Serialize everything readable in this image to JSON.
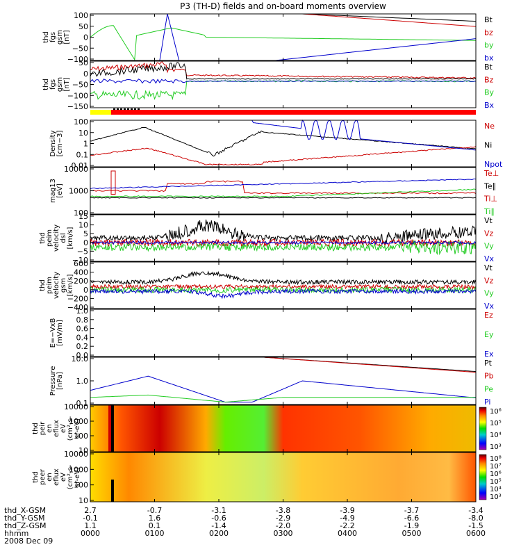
{
  "chart_data": {
    "title": "P3 (TH-D) fields and on-board moments overview",
    "type": "line",
    "x_range_hhmm": [
      "0000",
      "0600"
    ],
    "x_tick_hhmm": [
      "0000",
      "0100",
      "0200",
      "0300",
      "0400",
      "0500",
      "0600"
    ],
    "date_label": "2008 Dec 09",
    "ephemeris_rows": [
      {
        "label": "thd_X-GSM",
        "values": [
          "2.7",
          "-0.7",
          "-3.1",
          "-3.8",
          "-3.9",
          "-3.7",
          "-3.4"
        ]
      },
      {
        "label": "thd_Y-GSM",
        "values": [
          "-0.1",
          "1.6",
          "-0.6",
          "-2.9",
          "-4.9",
          "-6.6",
          "-8.0"
        ]
      },
      {
        "label": "thd_Z-GSM",
        "values": [
          "1.1",
          "0.1",
          "-1.4",
          "-2.0",
          "-2.2",
          "-1.9",
          "-1.5"
        ]
      },
      {
        "label": "hhmm",
        "values": [
          "0000",
          "0100",
          "0200",
          "0300",
          "0400",
          "0500",
          "0600"
        ]
      }
    ],
    "panels": [
      {
        "id": "fgs",
        "ylabel": [
          "thd",
          "fgs",
          "gsm",
          "[nT]"
        ],
        "type": "line",
        "yticks": [
          "100",
          "50",
          "0",
          "−50",
          "−100"
        ],
        "legend": [
          {
            "name": "Bt",
            "color": "#000000"
          },
          {
            "name": "bz",
            "color": "#cc0000"
          },
          {
            "name": "by",
            "color": "#22cc22"
          },
          {
            "name": "bx",
            "color": "#0000cc"
          }
        ]
      },
      {
        "id": "fgl",
        "ylabel": [
          "thd",
          "fgs",
          "gsm",
          "[nT]"
        ],
        "type": "line",
        "yticks": [
          "50",
          "0",
          "−50",
          "−100",
          "−150"
        ],
        "legend": [
          {
            "name": "Bt",
            "color": "#000000"
          },
          {
            "name": "Bz",
            "color": "#cc0000"
          },
          {
            "name": "By",
            "color": "#22cc22"
          },
          {
            "name": "Bx",
            "color": "#0000cc"
          }
        ]
      },
      {
        "id": "density",
        "ylabel": [
          "Density",
          "[cm−3]"
        ],
        "type": "line",
        "log": true,
        "yticks": [
          "100",
          "10",
          "1",
          "0.1",
          "0.01"
        ],
        "legend": [
          {
            "name": "Ne",
            "color": "#cc0000"
          },
          {
            "name": "Ni",
            "color": "#000000"
          },
          {
            "name": "Npot",
            "color": "#0000cc"
          }
        ]
      },
      {
        "id": "temp",
        "ylabel": [
          "mag13",
          "[eV]"
        ],
        "type": "line",
        "log": true,
        "yticks": [
          "10000",
          "1000",
          "100"
        ],
        "legend": [
          {
            "name": "Te⊥",
            "color": "#cc0000"
          },
          {
            "name": "Te∥",
            "color": "#000000"
          },
          {
            "name": "Ti⊥",
            "color": "#cc0000"
          },
          {
            "name": "Ti∥",
            "color": "#22cc22"
          }
        ]
      },
      {
        "id": "velocity1",
        "ylabel": [
          "thd",
          "peim",
          "velocity",
          "dsl",
          "[km/s]"
        ],
        "type": "line",
        "yticks": [
          "15",
          "10",
          "5",
          "0",
          "−5",
          "−10"
        ],
        "legend": [
          {
            "name": "Vt",
            "color": "#000000"
          },
          {
            "name": "Vz",
            "color": "#cc0000"
          },
          {
            "name": "Vy",
            "color": "#22cc22"
          },
          {
            "name": "Vx",
            "color": "#0000cc"
          }
        ]
      },
      {
        "id": "velocity2",
        "ylabel": [
          "thd",
          "peim",
          "velocity",
          "gsm",
          "[km/s]"
        ],
        "type": "line",
        "yticks": [
          "600",
          "400",
          "200",
          "0",
          "−200",
          "−400"
        ],
        "legend": [
          {
            "name": "Vt",
            "color": "#000000"
          },
          {
            "name": "Vz",
            "color": "#cc0000"
          },
          {
            "name": "Vy",
            "color": "#22cc22"
          },
          {
            "name": "Vx",
            "color": "#0000cc"
          }
        ]
      },
      {
        "id": "efield",
        "ylabel": [
          "E=−VxB",
          "[mV/m]"
        ],
        "type": "line",
        "yticks": [
          "1.0",
          "0.8",
          "0.6",
          "0.4",
          "0.2",
          "0.0"
        ],
        "legend": [
          {
            "name": "Ez",
            "color": "#cc0000"
          },
          {
            "name": "Ey",
            "color": "#22cc22"
          },
          {
            "name": "Ex",
            "color": "#0000cc"
          }
        ]
      },
      {
        "id": "pressure",
        "ylabel": [
          "Pressure",
          "[nPa]"
        ],
        "type": "line",
        "log": true,
        "yticks": [
          "10.0",
          "1.0",
          "0.1"
        ],
        "legend": [
          {
            "name": "Pt",
            "color": "#000000"
          },
          {
            "name": "Pb",
            "color": "#cc0000"
          },
          {
            "name": "Pe",
            "color": "#22cc22"
          },
          {
            "name": "Pi",
            "color": "#0000cc"
          }
        ]
      },
      {
        "id": "ion_spec",
        "ylabel": [
          "thd",
          "peir",
          "en",
          "eflux",
          "eV",
          "(cm²-s-",
          "sr-eV)"
        ],
        "type": "heatmap",
        "yticks": [
          "10000",
          "1000",
          "100",
          "10"
        ],
        "colorbar_ticks": [
          "10⁶",
          "10⁵",
          "10⁴",
          "10³"
        ]
      },
      {
        "id": "elec_spec",
        "ylabel": [
          "thd",
          "peer",
          "en",
          "eflux",
          "eV",
          "(cm²-s-",
          "sr-eV)"
        ],
        "type": "heatmap",
        "yticks": [
          "10000",
          "1000",
          "100",
          "10"
        ],
        "colorbar_ticks": [
          "10⁸",
          "10⁷",
          "10⁶",
          "10⁵",
          "10⁴",
          "10³"
        ]
      }
    ]
  }
}
